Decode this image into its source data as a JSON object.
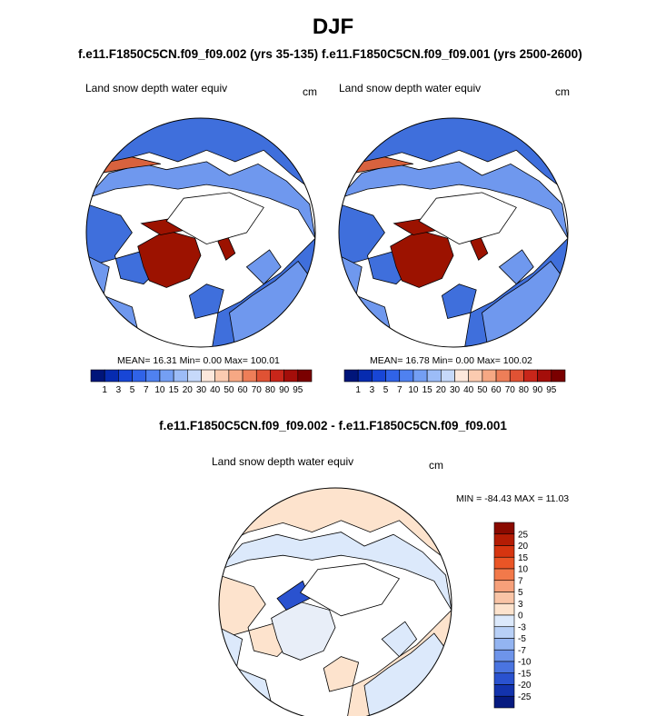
{
  "title": "DJF",
  "colors": {
    "ocean": "#ffffff",
    "snow_low": "#3f6fdc",
    "snow_mid": "#6f98ee",
    "snow_high": "#9c1200",
    "diff_pos": "#fde3cd",
    "diff_neg": "#dce9fb",
    "coast": "#000000"
  },
  "panels": [
    {
      "case_title": "f.e11.F1850C5CN.f09_f09.002 (yrs 35-135)",
      "variable": "Land snow depth water equiv",
      "units": "cm",
      "stats": "MEAN=  16.31  Min=   0.00  Max= 100.01"
    },
    {
      "case_title": "f.e11.F1850C5CN.f09_f09.001 (yrs 2500-2600)",
      "variable": "Land snow depth water equiv",
      "units": "cm",
      "stats": "MEAN=  16.78  Min=   0.00  Max= 100.02"
    }
  ],
  "difference": {
    "title": "f.e11.F1850C5CN.f09_f09.002 - f.e11.F1850C5CN.f09_f09.001",
    "variable": "Land snow depth water equiv",
    "units": "cm",
    "stats": "MIN = -84.43 MAX =  11.03"
  },
  "chart_data": [
    {
      "type": "heatmap",
      "projection": "north polar stereographic",
      "title": "f.e11.F1850C5CN.f09_f09.002 (yrs 35-135)",
      "variable": "Land snow depth water equiv",
      "units": "cm",
      "mean": 16.31,
      "min": 0.0,
      "max": 100.01,
      "colorbar": {
        "levels": [
          1,
          3,
          5,
          7,
          10,
          15,
          20,
          30,
          40,
          50,
          60,
          70,
          80,
          90,
          95
        ],
        "colors": [
          "#00157a",
          "#062bb0",
          "#1846d6",
          "#3063e8",
          "#4f81f0",
          "#749ff4",
          "#9cbcf7",
          "#c6d9fa",
          "#fde8dc",
          "#fbcbb0",
          "#f6a884",
          "#ee7e58",
          "#e05234",
          "#c8261a",
          "#a40e0a",
          "#7a0000"
        ]
      }
    },
    {
      "type": "heatmap",
      "projection": "north polar stereographic",
      "title": "f.e11.F1850C5CN.f09_f09.001 (yrs 2500-2600)",
      "variable": "Land snow depth water equiv",
      "units": "cm",
      "mean": 16.78,
      "min": 0.0,
      "max": 100.02,
      "colorbar": {
        "levels": [
          1,
          3,
          5,
          7,
          10,
          15,
          20,
          30,
          40,
          50,
          60,
          70,
          80,
          90,
          95
        ],
        "colors": [
          "#00157a",
          "#062bb0",
          "#1846d6",
          "#3063e8",
          "#4f81f0",
          "#749ff4",
          "#9cbcf7",
          "#c6d9fa",
          "#fde8dc",
          "#fbcbb0",
          "#f6a884",
          "#ee7e58",
          "#e05234",
          "#c8261a",
          "#a40e0a",
          "#7a0000"
        ]
      }
    },
    {
      "type": "heatmap",
      "projection": "north polar stereographic",
      "title": "f.e11.F1850C5CN.f09_f09.002 - f.e11.F1850C5CN.f09_f09.001",
      "variable": "Land snow depth water equiv",
      "units": "cm",
      "min": -84.43,
      "max": 11.03,
      "colorbar": {
        "levels": [
          25,
          20,
          15,
          10,
          7,
          5,
          3,
          0,
          -3,
          -5,
          -7,
          -10,
          -15,
          -20,
          -25
        ],
        "colors": [
          "#8a0a00",
          "#b41c04",
          "#d63510",
          "#ea5526",
          "#f2794a",
          "#f6a07a",
          "#f9c4a6",
          "#fde3cd",
          "#dce9fb",
          "#b8d0f7",
          "#93b4f1",
          "#6e94ea",
          "#4a74e0",
          "#2a52cf",
          "#1333ad",
          "#061a80"
        ]
      }
    }
  ]
}
